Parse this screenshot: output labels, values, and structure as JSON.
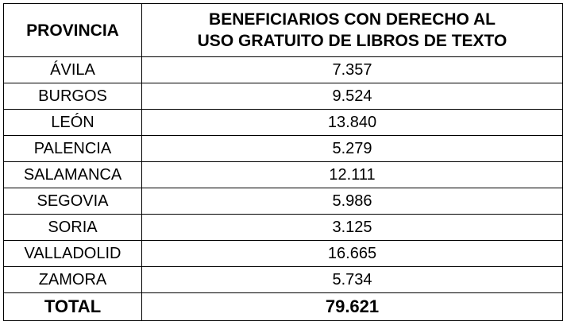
{
  "table": {
    "header": [
      "PROVINCIA",
      "BENEFICIARIOS CON DERECHO AL\nUSO GRATUITO DE LIBROS DE TEXTO"
    ],
    "rows": [
      [
        "ÁVILA",
        "7.357"
      ],
      [
        "BURGOS",
        "9.524"
      ],
      [
        "LEÓN",
        "13.840"
      ],
      [
        "PALENCIA",
        "5.279"
      ],
      [
        "SALAMANCA",
        "12.111"
      ],
      [
        "SEGOVIA",
        "5.986"
      ],
      [
        "SORIA",
        "3.125"
      ],
      [
        "VALLADOLID",
        "16.665"
      ],
      [
        "ZAMORA",
        "5.734"
      ]
    ],
    "total": [
      "TOTAL",
      "79.621"
    ]
  }
}
